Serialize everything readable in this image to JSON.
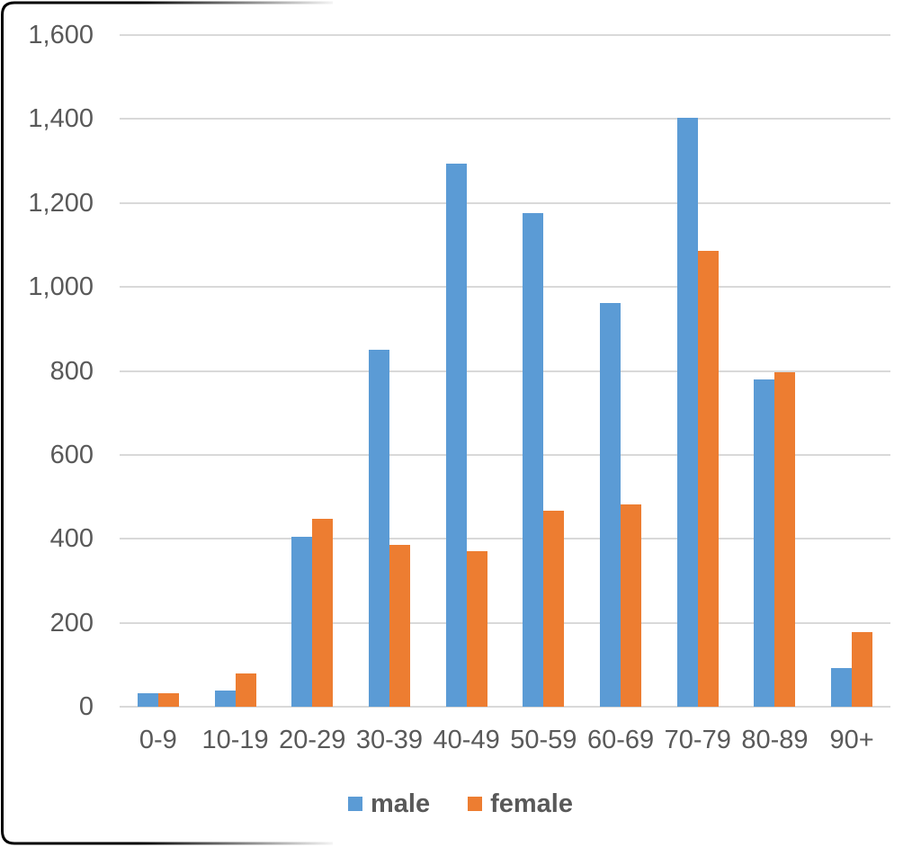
{
  "chart_data": {
    "type": "bar",
    "title": "",
    "xlabel": "",
    "ylabel": "",
    "categories": [
      "0-9",
      "10-19",
      "20-29",
      "30-39",
      "40-49",
      "50-59",
      "60-69",
      "70-79",
      "80-89",
      "90+"
    ],
    "series": [
      {
        "name": "male",
        "color": "#5B9BD5",
        "values": [
          32,
          38,
          405,
          850,
          1293,
          1177,
          961,
          1403,
          780,
          93
        ]
      },
      {
        "name": "female",
        "color": "#ED7D31",
        "values": [
          32,
          80,
          447,
          385,
          370,
          468,
          483,
          1086,
          796,
          177
        ]
      }
    ],
    "ylim": [
      0,
      1600
    ],
    "ytick_step": 200,
    "yticks": [
      {
        "value": 0,
        "label": "0"
      },
      {
        "value": 200,
        "label": "200"
      },
      {
        "value": 400,
        "label": "400"
      },
      {
        "value": 600,
        "label": "600"
      },
      {
        "value": 800,
        "label": "800"
      },
      {
        "value": 1000,
        "label": "1,000"
      },
      {
        "value": 1200,
        "label": "1,200"
      },
      {
        "value": 1400,
        "label": "1,400"
      },
      {
        "value": 1600,
        "label": "1,600"
      }
    ],
    "grid": "horizontal-on",
    "legend_position": "bottom",
    "gridline_color": "#D9D9D9",
    "axis_text_color": "#595959"
  }
}
